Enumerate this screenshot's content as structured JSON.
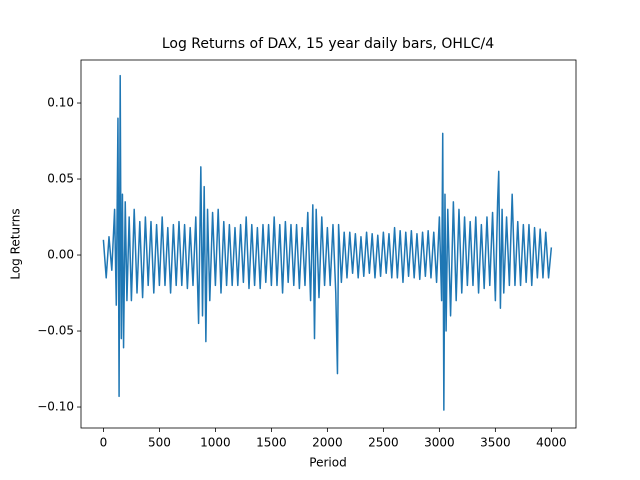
{
  "chart_data": {
    "type": "line",
    "title": "Log Returns of DAX, 15 year daily bars, OHLC/4",
    "x_label": "Period",
    "y_label": "Log Returns",
    "xlim": [
      -200,
      4220
    ],
    "ylim": [
      -0.1138,
      0.1283
    ],
    "xticks": [
      0,
      500,
      1000,
      1500,
      2000,
      2500,
      3000,
      3500,
      4000
    ],
    "yticks": [
      {
        "value": -0.1,
        "label": "−0.10"
      },
      {
        "value": -0.05,
        "label": "−0.05"
      },
      {
        "value": 0,
        "label": "0.00"
      },
      {
        "value": 0.05,
        "label": "0.05"
      },
      {
        "value": 0.1,
        "label": "0.10"
      }
    ],
    "grid": false,
    "series": [
      {
        "color": "#1f77b4",
        "x": [
          0,
          25,
          50,
          75,
          100,
          115,
          130,
          140,
          150,
          160,
          170,
          180,
          195,
          210,
          230,
          250,
          275,
          300,
          325,
          350,
          375,
          400,
          425,
          450,
          475,
          500,
          525,
          550,
          575,
          600,
          625,
          650,
          675,
          700,
          725,
          750,
          775,
          800,
          825,
          850,
          870,
          885,
          900,
          915,
          930,
          950,
          975,
          1000,
          1025,
          1050,
          1075,
          1100,
          1125,
          1150,
          1175,
          1200,
          1225,
          1250,
          1275,
          1300,
          1325,
          1350,
          1375,
          1400,
          1425,
          1450,
          1475,
          1500,
          1525,
          1550,
          1575,
          1600,
          1625,
          1650,
          1675,
          1700,
          1725,
          1750,
          1775,
          1800,
          1825,
          1850,
          1870,
          1885,
          1900,
          1925,
          1950,
          1975,
          2000,
          2025,
          2050,
          2075,
          2090,
          2100,
          2125,
          2150,
          2175,
          2200,
          2225,
          2250,
          2275,
          2300,
          2325,
          2350,
          2375,
          2400,
          2425,
          2450,
          2475,
          2500,
          2525,
          2550,
          2575,
          2600,
          2625,
          2650,
          2675,
          2700,
          2725,
          2750,
          2775,
          2800,
          2825,
          2850,
          2875,
          2900,
          2925,
          2950,
          2975,
          3000,
          3020,
          3030,
          3040,
          3050,
          3060,
          3075,
          3100,
          3125,
          3150,
          3175,
          3200,
          3225,
          3250,
          3275,
          3300,
          3325,
          3350,
          3375,
          3400,
          3425,
          3450,
          3475,
          3500,
          3520,
          3530,
          3545,
          3560,
          3575,
          3600,
          3625,
          3650,
          3675,
          3700,
          3725,
          3750,
          3775,
          3800,
          3825,
          3850,
          3875,
          3900,
          3925,
          3950,
          3975,
          4000
        ],
        "values": [
          0.01,
          -0.015,
          0.012,
          -0.01,
          0.03,
          -0.033,
          0.09,
          -0.093,
          0.118,
          -0.055,
          0.04,
          -0.061,
          0.035,
          -0.03,
          0.025,
          -0.03,
          0.03,
          -0.025,
          0.022,
          -0.028,
          0.025,
          -0.02,
          0.022,
          -0.025,
          0.02,
          -0.02,
          0.025,
          -0.02,
          0.018,
          -0.025,
          0.02,
          -0.02,
          0.022,
          -0.02,
          0.02,
          -0.022,
          0.018,
          -0.02,
          0.025,
          -0.045,
          0.058,
          -0.04,
          0.045,
          -0.057,
          0.03,
          -0.03,
          0.028,
          -0.02,
          0.03,
          -0.025,
          0.022,
          -0.02,
          0.02,
          -0.02,
          0.018,
          -0.02,
          0.02,
          -0.018,
          0.025,
          -0.022,
          0.02,
          -0.02,
          0.018,
          -0.022,
          0.02,
          -0.018,
          0.02,
          -0.02,
          0.025,
          -0.02,
          0.02,
          -0.025,
          0.022,
          -0.018,
          0.02,
          -0.02,
          0.02,
          -0.022,
          0.018,
          -0.02,
          0.028,
          -0.03,
          0.033,
          -0.055,
          0.03,
          -0.028,
          0.025,
          -0.02,
          0.018,
          -0.02,
          0.02,
          -0.025,
          -0.078,
          0.02,
          -0.018,
          0.015,
          -0.015,
          0.015,
          -0.012,
          0.014,
          -0.015,
          0.012,
          -0.014,
          0.015,
          -0.012,
          0.014,
          -0.015,
          0.013,
          -0.014,
          0.015,
          -0.012,
          0.014,
          -0.015,
          0.018,
          -0.015,
          0.016,
          -0.018,
          0.015,
          -0.014,
          0.016,
          -0.015,
          0.014,
          -0.016,
          0.015,
          -0.014,
          0.016,
          -0.015,
          0.015,
          -0.018,
          0.025,
          -0.03,
          0.08,
          -0.102,
          0.04,
          -0.05,
          0.03,
          -0.04,
          0.035,
          -0.03,
          0.03,
          -0.025,
          0.025,
          -0.02,
          0.022,
          -0.02,
          0.025,
          -0.025,
          0.02,
          -0.022,
          0.025,
          -0.02,
          0.028,
          -0.03,
          0.035,
          0.055,
          -0.035,
          0.03,
          -0.025,
          0.025,
          -0.02,
          0.04,
          -0.02,
          0.022,
          -0.02,
          0.02,
          -0.018,
          0.02,
          -0.02,
          0.018,
          -0.015,
          0.017,
          -0.015,
          0.015,
          -0.015,
          0.005
        ]
      }
    ]
  }
}
